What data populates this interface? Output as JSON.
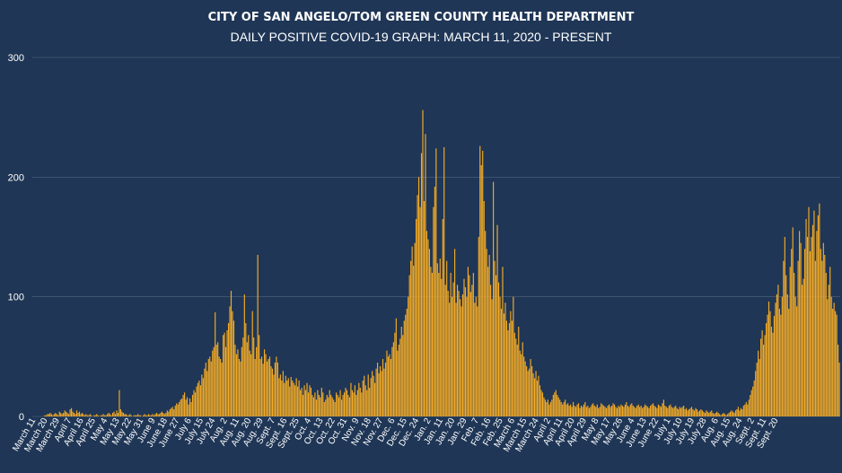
{
  "chart_data": {
    "type": "bar",
    "title": "CITY OF SAN ANGELO/TOM GREEN COUNTY HEALTH DEPARTMENT",
    "subtitle": "DAILY POSITIVE COVID-19 GRAPH: MARCH 11, 2020 - PRESENT",
    "xlabel": "",
    "ylabel": "",
    "ylim": [
      0,
      300
    ],
    "yticks": [
      0,
      100,
      200,
      300
    ],
    "grid": true,
    "colors": {
      "background": "#1f3656",
      "bar": "#f4ab25",
      "grid": "#52657f",
      "text": "#ffffff"
    },
    "x_tick_labels": [
      "March 11",
      "March 20",
      "March 29",
      "April 7",
      "April 16",
      "April 25",
      "May 4",
      "May 13",
      "May 22",
      "May 31",
      "June 9",
      "June 18",
      "June 27",
      "July 6",
      "July 15",
      "July 24",
      "Aug. 2",
      "Aug. 11",
      "Aug. 20",
      "Aug. 29",
      "Sept. 7",
      "Sept. 16",
      "Sept. 25",
      "Oct. 4",
      "Oct. 13",
      "Oct. 22",
      "Oct. 31",
      "Nov. 9",
      "Nov. 18",
      "Nov. 27",
      "Dec. 6",
      "Dec. 15",
      "Dec. 24",
      "Jan. 2",
      "Jan. 11",
      "Jan. 20",
      "Jan. 29",
      "Feb. 7",
      "Feb. 16",
      "Feb. 25",
      "March 6",
      "March 15",
      "March 24",
      "April 2",
      "April 11",
      "April 20",
      "April 29",
      "May 8",
      "May 17",
      "May 26",
      "June 4",
      "June 13",
      "June 22",
      "July 1",
      "July 10",
      "July 19",
      "July 28",
      "Aug. 6",
      "Aug. 15",
      "Aug. 24",
      "Sept. 2",
      "Sept. 11",
      "Sept. 20"
    ],
    "series": [
      {
        "values": [
          0,
          0,
          0,
          0,
          0,
          0,
          0,
          0,
          0,
          1,
          1,
          2,
          2,
          3,
          2,
          1,
          2,
          3,
          2,
          1,
          4,
          3,
          2,
          3,
          5,
          4,
          3,
          2,
          6,
          7,
          4,
          3,
          2,
          5,
          3,
          4,
          2,
          3,
          2,
          1,
          2,
          1,
          1,
          2,
          1,
          0,
          1,
          1,
          2,
          1,
          0,
          1,
          1,
          2,
          1,
          1,
          2,
          3,
          2,
          1,
          3,
          4,
          2,
          5,
          3,
          22,
          6,
          4,
          3,
          2,
          2,
          1,
          1,
          2,
          1,
          0,
          1,
          1,
          1,
          2,
          1,
          1,
          0,
          1,
          2,
          1,
          1,
          2,
          1,
          1,
          2,
          1,
          2,
          3,
          2,
          2,
          3,
          4,
          3,
          2,
          3,
          5,
          4,
          6,
          7,
          8,
          6,
          9,
          11,
          10,
          12,
          14,
          15,
          18,
          20,
          14,
          16,
          10,
          15,
          12,
          18,
          22,
          20,
          25,
          28,
          30,
          26,
          35,
          32,
          40,
          45,
          38,
          48,
          50,
          46,
          55,
          58,
          87,
          60,
          62,
          50,
          48,
          45,
          68,
          70,
          58,
          72,
          78,
          92,
          105,
          88,
          80,
          60,
          52,
          56,
          48,
          46,
          58,
          66,
          102,
          78,
          62,
          68,
          55,
          52,
          88,
          66,
          48,
          58,
          135,
          68,
          48,
          50,
          44,
          56,
          52,
          46,
          48,
          50,
          42,
          40,
          35,
          45,
          50,
          45,
          32,
          35,
          30,
          38,
          28,
          34,
          30,
          32,
          25,
          33,
          30,
          28,
          26,
          32,
          25,
          30,
          22,
          24,
          18,
          26,
          22,
          28,
          20,
          26,
          24,
          18,
          16,
          20,
          14,
          22,
          18,
          16,
          24,
          20,
          12,
          14,
          18,
          16,
          22,
          18,
          16,
          14,
          12,
          20,
          18,
          16,
          22,
          14,
          18,
          20,
          24,
          22,
          18,
          16,
          28,
          22,
          20,
          26,
          18,
          22,
          28,
          24,
          20,
          30,
          34,
          26,
          22,
          35,
          24,
          32,
          38,
          34,
          28,
          40,
          45,
          36,
          42,
          38,
          48,
          40,
          45,
          55,
          50,
          52,
          48,
          58,
          62,
          70,
          82,
          55,
          60,
          65,
          75,
          68,
          80,
          85,
          90,
          100,
          118,
          130,
          142,
          126,
          145,
          165,
          185,
          200,
          175,
          220,
          256,
          180,
          236,
          155,
          148,
          140,
          125,
          120,
          175,
          192,
          224,
          128,
          120,
          132,
          115,
          165,
          225,
          110,
          130,
          105,
          95,
          120,
          100,
          112,
          140,
          95,
          110,
          105,
          98,
          92,
          102,
          115,
          108,
          100,
          125,
          118,
          104,
          110,
          120,
          95,
          100,
          92,
          150,
          226,
          210,
          222,
          180,
          155,
          140,
          125,
          135,
          110,
          98,
          196,
          130,
          118,
          160,
          112,
          100,
          90,
          125,
          86,
          95,
          80,
          72,
          78,
          88,
          80,
          100,
          70,
          65,
          60,
          75,
          55,
          52,
          62,
          50,
          46,
          42,
          38,
          40,
          48,
          42,
          36,
          32,
          38,
          30,
          34,
          26,
          22,
          20,
          16,
          14,
          12,
          14,
          10,
          12,
          14,
          18,
          20,
          22,
          18,
          16,
          14,
          12,
          10,
          12,
          14,
          10,
          11,
          9,
          10,
          8,
          12,
          9,
          8,
          10,
          11,
          7,
          9,
          8,
          10,
          12,
          8,
          9,
          7,
          8,
          10,
          11,
          9,
          8,
          10,
          7,
          8,
          11,
          10,
          9,
          8,
          7,
          9,
          10,
          8,
          9,
          11,
          10,
          8,
          7,
          9,
          8,
          10,
          9,
          8,
          10,
          12,
          9,
          8,
          10,
          11,
          9,
          8,
          7,
          9,
          10,
          8,
          9,
          7,
          8,
          10,
          9,
          8,
          7,
          9,
          10,
          11,
          9,
          8,
          7,
          10,
          9,
          8,
          11,
          14,
          9,
          8,
          7,
          9,
          10,
          8,
          7,
          8,
          9,
          7,
          6,
          8,
          7,
          8,
          9,
          6,
          7,
          5,
          6,
          7,
          8,
          6,
          5,
          7,
          6,
          4,
          5,
          6,
          5,
          4,
          3,
          5,
          4,
          3,
          4,
          5,
          3,
          2,
          3,
          4,
          3,
          2,
          1,
          2,
          3,
          2,
          1,
          2,
          3,
          4,
          5,
          4,
          3,
          5,
          6,
          8,
          5,
          7,
          6,
          9,
          10,
          12,
          10,
          14,
          18,
          22,
          25,
          30,
          38,
          45,
          55,
          48,
          65,
          72,
          60,
          68,
          78,
          85,
          96,
          88,
          75,
          70,
          84,
          95,
          102,
          110,
          90,
          85,
          100,
          130,
          150,
          118,
          102,
          90,
          125,
          140,
          158,
          120,
          100,
          92,
          130,
          155,
          145,
          110,
          115,
          140,
          165,
          150,
          175,
          138,
          150,
          160,
          172,
          130,
          155,
          168,
          178,
          140,
          130,
          145,
          135,
          120,
          98,
          110,
          125,
          100,
          90,
          95,
          88,
          85,
          60,
          45
        ]
      }
    ]
  }
}
